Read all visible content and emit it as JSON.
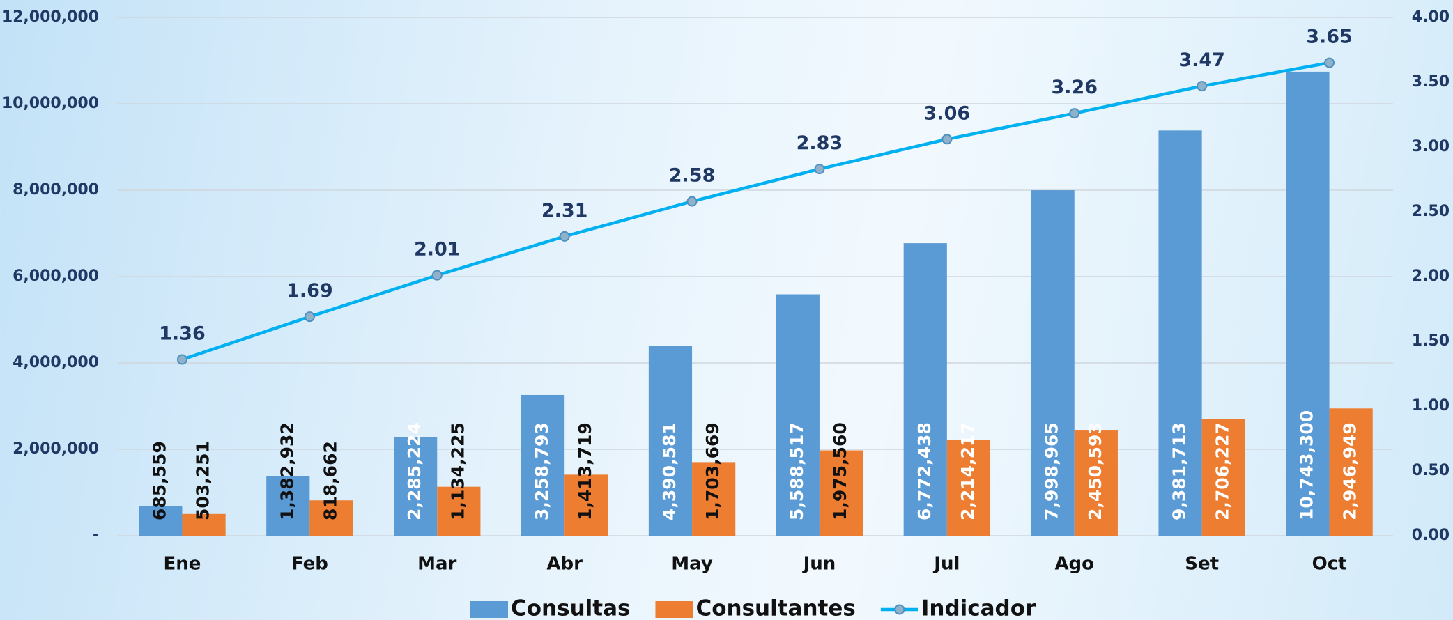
{
  "chart_data": {
    "type": "bar-line",
    "categories": [
      "Ene",
      "Feb",
      "Mar",
      "Abr",
      "May",
      "Jun",
      "Jul",
      "Ago",
      "Set",
      "Oct"
    ],
    "series": [
      {
        "name": "Consultas",
        "color": "#5b9bd5",
        "values": [
          685559,
          1382932,
          2285224,
          3258793,
          4390581,
          5588517,
          6772438,
          7998965,
          9381713,
          10743300
        ],
        "value_labels": [
          "685,559",
          "1,382,932",
          "2,285,224",
          "3,258,793",
          "4,390,581",
          "5,588,517",
          "6,772,438",
          "7,998,965",
          "9,381,713",
          "10,743,300"
        ]
      },
      {
        "name": "Consultantes",
        "color": "#ed7d31",
        "values": [
          503251,
          818662,
          1134225,
          1413719,
          1703669,
          1975560,
          2214217,
          2450593,
          2706227,
          2946949
        ],
        "value_labels": [
          "503,251",
          "818,662",
          "1,134,225",
          "1,413,719",
          "1,703,669",
          "1,975,560",
          "2,214,217",
          "2,450,593",
          "2,706,227",
          "2,946,949"
        ]
      },
      {
        "name": "Indicador",
        "color": "#00b0f0",
        "axis": "y2",
        "values": [
          1.36,
          1.69,
          2.01,
          2.31,
          2.58,
          2.83,
          3.06,
          3.26,
          3.47,
          3.65
        ]
      }
    ],
    "ylim": [
      0,
      12000000
    ],
    "yticks": [
      {
        "value": 0,
        "label": "-"
      },
      {
        "value": 2000000,
        "label": "2,000,000"
      },
      {
        "value": 4000000,
        "label": "4,000,000"
      },
      {
        "value": 6000000,
        "label": "6,000,000"
      },
      {
        "value": 8000000,
        "label": "8,000,000"
      },
      {
        "value": 10000000,
        "label": "10,000,000"
      },
      {
        "value": 12000000,
        "label": "12,000,000"
      }
    ],
    "y2lim": [
      0,
      4
    ],
    "y2ticks": [
      {
        "value": 0,
        "label": "0.00"
      },
      {
        "value": 0.5,
        "label": "0.50"
      },
      {
        "value": 1,
        "label": "1.00"
      },
      {
        "value": 1.5,
        "label": "1.50"
      },
      {
        "value": 2,
        "label": "2.00"
      },
      {
        "value": 2.5,
        "label": "2.50"
      },
      {
        "value": 3,
        "label": "3.00"
      },
      {
        "value": 3.5,
        "label": "3.50"
      },
      {
        "value": 4,
        "label": "4.00"
      }
    ],
    "grid": true,
    "legend": "bottom"
  }
}
